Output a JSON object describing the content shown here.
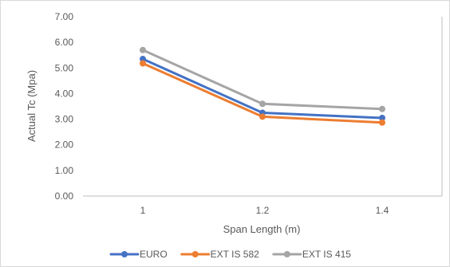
{
  "chart_data": {
    "type": "line",
    "xlabel": "Span Length (m)",
    "ylabel": "Actual Tc (Mpa)",
    "categories": [
      "1",
      "1.2",
      "1.4"
    ],
    "ylim": [
      0,
      7
    ],
    "ytick_labels": [
      "0.00",
      "1.00",
      "2.00",
      "3.00",
      "4.00",
      "5.00",
      "6.00",
      "7.00"
    ],
    "grid": false,
    "legend_position": "bottom",
    "series": [
      {
        "name": "EURO",
        "values": [
          5.35,
          3.25,
          3.05
        ],
        "color": "#4472C4"
      },
      {
        "name": "EXT IS 582",
        "values": [
          5.18,
          3.1,
          2.87
        ],
        "color": "#ED7D31"
      },
      {
        "name": "EXT IS 415",
        "values": [
          5.7,
          3.6,
          3.4
        ],
        "color": "#A5A5A5"
      }
    ]
  }
}
